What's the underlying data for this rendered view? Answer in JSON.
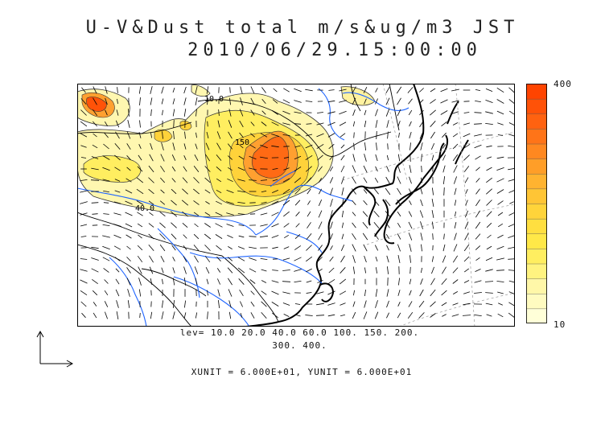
{
  "title": {
    "line1": "U-V&Dust total m/s&ug/m3 JST",
    "line2": "2010/06/29.15:00:00"
  },
  "contour_labels": [
    "10.0",
    "150",
    "40.0"
  ],
  "levels": {
    "line1": "lev= 10.0 20.0 40.0 60.0 100. 150. 200.",
    "line2": "300. 400."
  },
  "units_text": "XUNIT = 6.000E+01, YUNIT = 6.000E+01",
  "colorbar": {
    "max_label": "400",
    "min_label": "10",
    "colors": [
      "#ffffd8",
      "#fffbc0",
      "#fff7a8",
      "#fff380",
      "#ffee60",
      "#ffe848",
      "#ffdf40",
      "#ffd43a",
      "#ffc535",
      "#ffb330",
      "#ff9e28",
      "#ff8820",
      "#ff7418",
      "#ff6210",
      "#ff5208",
      "#ff4400"
    ]
  },
  "palette": {
    "coast": "#000000",
    "river": "#1e64ff",
    "dust_low": "#fff7a8",
    "dust_high": "#ff4400"
  },
  "icons": {
    "ref_vector": "axes-arrow-icon"
  }
}
